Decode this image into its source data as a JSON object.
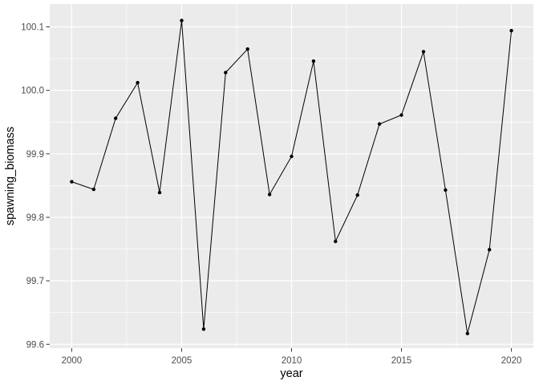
{
  "chart_data": {
    "type": "line",
    "title": "",
    "xlabel": "year",
    "ylabel": "spawning_biomass",
    "legend": "none",
    "grid": "major+minor",
    "x": [
      2000,
      2001,
      2002,
      2003,
      2004,
      2005,
      2006,
      2007,
      2008,
      2009,
      2010,
      2011,
      2012,
      2013,
      2014,
      2015,
      2016,
      2017,
      2018,
      2019,
      2020
    ],
    "series": [
      {
        "name": "spawning_biomass",
        "values": [
          99.856,
          99.844,
          99.956,
          100.012,
          99.839,
          100.11,
          99.624,
          100.028,
          100.065,
          99.836,
          99.896,
          100.046,
          99.762,
          99.835,
          99.947,
          99.961,
          100.061,
          99.843,
          99.617,
          99.749,
          100.094
        ]
      }
    ],
    "xlim": [
      1999,
      2021
    ],
    "ylim": [
      99.594,
      100.136
    ],
    "x_ticks": [
      2000,
      2005,
      2010,
      2015,
      2020
    ],
    "x_tick_labels": [
      "2000",
      "2005",
      "2010",
      "2015",
      "2020"
    ],
    "x_minor_ticks": [
      2002.5,
      2007.5,
      2012.5,
      2017.5
    ],
    "y_ticks": [
      99.6,
      99.7,
      99.8,
      99.9,
      100.0,
      100.1
    ],
    "y_tick_labels": [
      "99.6",
      "99.7",
      "99.8",
      "99.9",
      "100.0",
      "100.1"
    ],
    "y_minor_ticks": [
      99.65,
      99.75,
      99.85,
      99.95,
      100.05
    ],
    "colors": {
      "panel_bg": "#EBEBEB",
      "grid_major": "#FFFFFF",
      "grid_minor": "#FFFFFF",
      "line": "#000000",
      "point": "#000000",
      "tick_mark": "#333333",
      "tick_label": "#4D4D4D",
      "axis_title": "#000000",
      "outer_bg": "#FFFFFF"
    }
  }
}
